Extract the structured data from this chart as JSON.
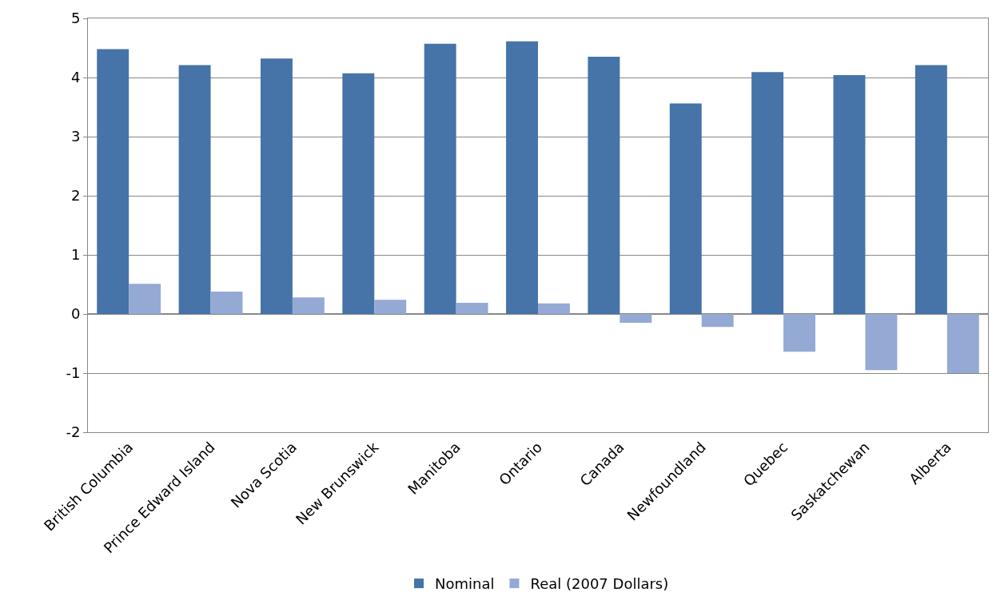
{
  "chart_data": {
    "type": "bar",
    "categories": [
      "British Columbia",
      "Prince Edward Island",
      "Nova Scotia",
      "New Brunswick",
      "Manitoba",
      "Ontario",
      "Canada",
      "Newfoundland",
      "Quebec",
      "Saskatchewan",
      "Alberta"
    ],
    "series": [
      {
        "name": "Nominal",
        "color": "#4673a8",
        "values": [
          4.48,
          4.21,
          4.32,
          4.07,
          4.57,
          4.61,
          4.35,
          3.56,
          4.09,
          4.04,
          4.21
        ]
      },
      {
        "name": "Real (2007 Dollars)",
        "color": "#94aad4",
        "values": [
          0.51,
          0.38,
          0.28,
          0.24,
          0.19,
          0.18,
          -0.15,
          -0.22,
          -0.64,
          -0.95,
          -1.0
        ]
      }
    ],
    "ylim": [
      -2,
      5
    ],
    "yticks": [
      -2,
      -1,
      0,
      1,
      2,
      3,
      4,
      5
    ],
    "grid": "y",
    "legend": "bottom"
  }
}
